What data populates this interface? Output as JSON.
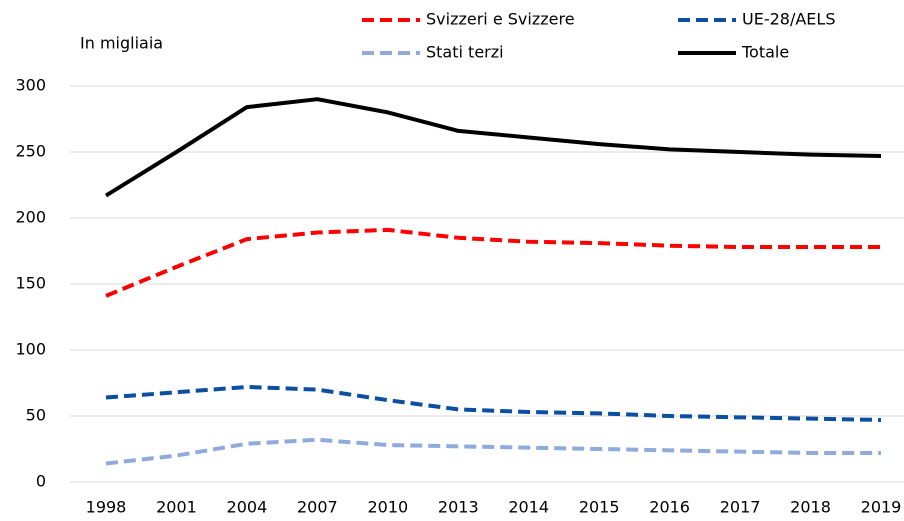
{
  "chart_data": {
    "type": "line",
    "annotation": "In migliaia",
    "categories": [
      "1998",
      "2001",
      "2004",
      "2007",
      "2010",
      "2013",
      "2014",
      "2015",
      "2016",
      "2017",
      "2018",
      "2019"
    ],
    "series": [
      {
        "name": "Svizzeri e Svizzere",
        "color": "#ff0000",
        "dashed": true,
        "values": [
          141,
          163,
          184,
          189,
          191,
          185,
          182,
          181,
          179,
          178,
          178,
          178
        ]
      },
      {
        "name": "UE-28/AELS",
        "color": "#0b4ea2",
        "dashed": true,
        "values": [
          64,
          68,
          72,
          70,
          62,
          55,
          53,
          52,
          50,
          49,
          48,
          47
        ]
      },
      {
        "name": "Stati terzi",
        "color": "#8faadc",
        "dashed": true,
        "values": [
          14,
          20,
          29,
          32,
          28,
          27,
          26,
          25,
          24,
          23,
          22,
          22
        ]
      },
      {
        "name": "Totale",
        "color": "#000000",
        "dashed": false,
        "values": [
          217,
          250,
          284,
          290,
          280,
          266,
          261,
          256,
          252,
          250,
          248,
          247
        ]
      }
    ],
    "ylim": [
      0,
      300
    ],
    "yticks": [
      0,
      50,
      100,
      150,
      200,
      250,
      300
    ],
    "grid": true
  }
}
